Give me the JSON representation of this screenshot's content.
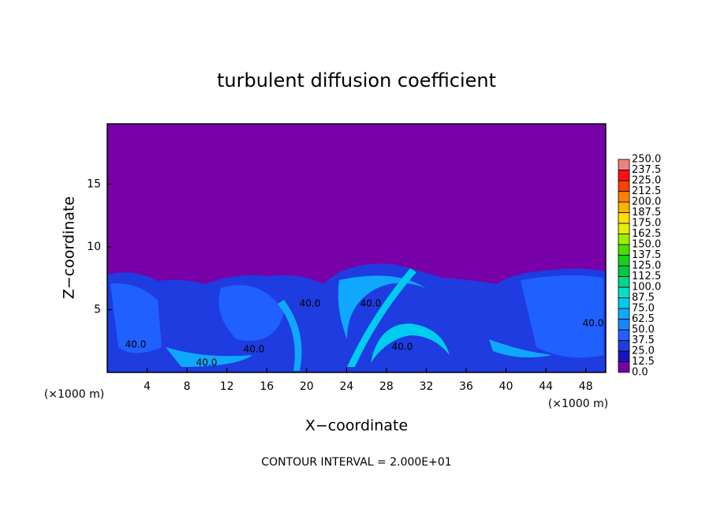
{
  "chart_data": {
    "type": "contour",
    "title": "turbulent diffusion coefficient",
    "x_label": "X−coordinate",
    "y_label": "Z−coordinate",
    "x_unit_label": "(×1000 m)",
    "y_unit_label": "(×1000 m)",
    "footnote": "CONTOUR INTERVAL = 2.000E+01",
    "xlim": [
      0,
      50
    ],
    "xticks": [
      4,
      8,
      12,
      16,
      20,
      24,
      28,
      32,
      36,
      40,
      44,
      48
    ],
    "ylim": [
      0,
      19.8
    ],
    "yticks": [
      5,
      10,
      15
    ],
    "contour_labels": [
      "40.0",
      "40.0",
      "40.0",
      "40.0",
      "40.0",
      "40.0",
      "40.0"
    ],
    "colorbar": {
      "levels": [
        {
          "value": 0,
          "label": "0.0"
        },
        12.5,
        {
          "value": 25,
          "label": "25.0"
        },
        37.5,
        {
          "value": 50,
          "label": "50.0"
        },
        62.5,
        {
          "value": 75,
          "label": "75.0"
        },
        87.5,
        {
          "value": 100,
          "label": "100.0"
        },
        112.5,
        {
          "value": 125,
          "label": "125.0"
        },
        137.5,
        {
          "value": 150,
          "label": "150.0"
        },
        162.5,
        {
          "value": 175,
          "label": "175.0"
        },
        187.5,
        {
          "value": 200,
          "label": "200.0"
        },
        212.5,
        {
          "value": 225,
          "label": "225.0"
        },
        237.5,
        {
          "value": 250,
          "label": "250.0"
        }
      ],
      "colors": [
        "#7800a8",
        "#1c10c0",
        "#1e3ce0",
        "#2060ff",
        "#1a84ff",
        "#10a8ff",
        "#00ccf0",
        "#00e0c8",
        "#00d888",
        "#00c848",
        "#18d018",
        "#48e000",
        "#98f000",
        "#e0f000",
        "#ffe000",
        "#ffb000",
        "#ff8000",
        "#ff4000",
        "#ff1010",
        "#f08080"
      ]
    }
  }
}
